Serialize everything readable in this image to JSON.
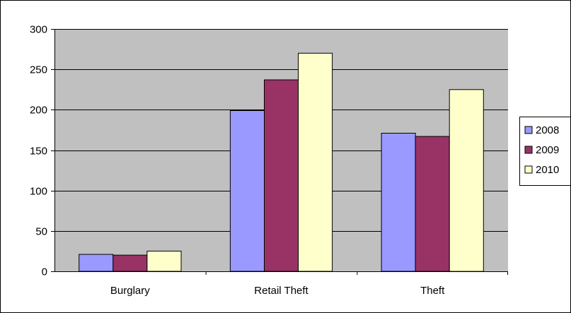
{
  "chart_data": {
    "type": "bar",
    "categories": [
      "Burglary",
      "Retail Theft",
      "Theft"
    ],
    "series": [
      {
        "name": "2008",
        "values": [
          21,
          199,
          171
        ],
        "color": "#9999ff"
      },
      {
        "name": "2009",
        "values": [
          20,
          237,
          167
        ],
        "color": "#993366"
      },
      {
        "name": "2010",
        "values": [
          25,
          270,
          225
        ],
        "color": "#ffffcc"
      }
    ],
    "title": "",
    "xlabel": "",
    "ylabel": "",
    "ylim": [
      0,
      300
    ],
    "yticks": [
      "0",
      "50",
      "100",
      "150",
      "200",
      "250",
      "300"
    ],
    "grid": true,
    "legend": "right",
    "plot_background": "#c0c0c0"
  }
}
